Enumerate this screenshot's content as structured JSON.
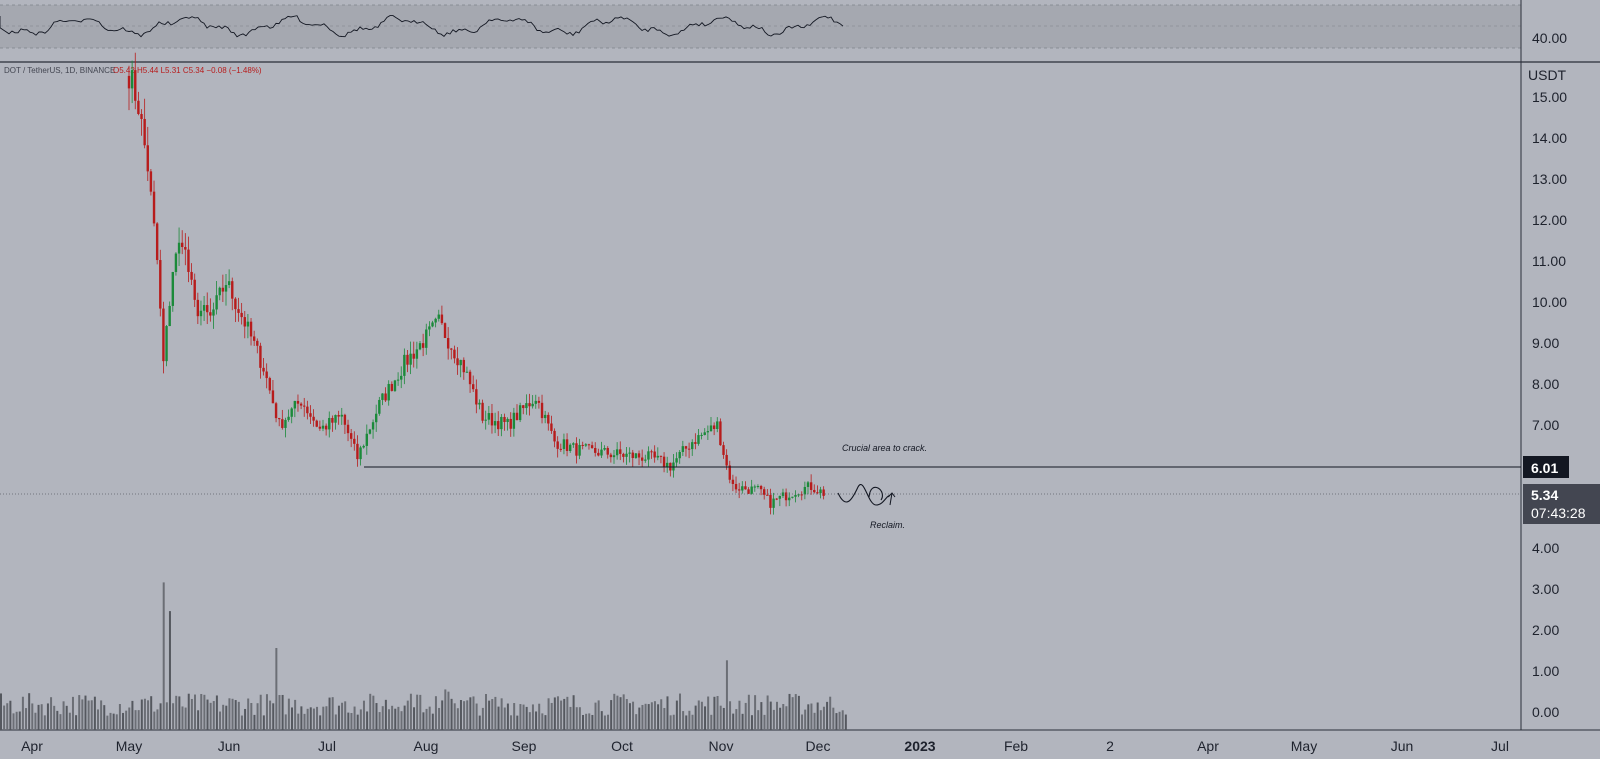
{
  "symbol_info": {
    "symbol": "DOT / TetherUS, 1D, BINANCE",
    "ohlc": "O5.42 H5.44 L5.31 C5.34 −0.08 (−1.48%)"
  },
  "price_axis": {
    "unit": "USDT",
    "ticks": [
      "15.00",
      "14.00",
      "13.00",
      "12.00",
      "11.00",
      "10.00",
      "9.00",
      "8.00",
      "7.00",
      "4.00",
      "3.00",
      "2.00",
      "1.00",
      "0.00"
    ]
  },
  "rsi_panel": {
    "tick_label": "40.00"
  },
  "time_axis": {
    "labels": [
      "Apr",
      "May",
      "Jun",
      "Jul",
      "Aug",
      "Sep",
      "Oct",
      "Nov",
      "Dec",
      "2023",
      "Feb",
      "2",
      "Apr",
      "May",
      "Jun",
      "Jul"
    ]
  },
  "badges": {
    "level_price": "6.01",
    "last_price": "5.34",
    "countdown": "07:43:28"
  },
  "annotations": {
    "crucial": "Crucial area to crack.",
    "reclaim": "Reclaim."
  },
  "colors": {
    "background": "#b2b5be",
    "up_candle": "#1b8a3a",
    "down_candle": "#b71c1c",
    "volume": "#6b6e75",
    "rsi_band": "#a5a8b0",
    "badge_dark": "#131722",
    "badge_price": "#434651"
  },
  "chart_data": {
    "type": "candlestick",
    "symbol": "DOT / TetherUS",
    "interval": "1D",
    "exchange": "BINANCE",
    "y_unit": "USDT",
    "ylim": [
      -0.4,
      15.6
    ],
    "x_range": [
      "Mar 2022",
      "Jul 2023"
    ],
    "close_path": [
      {
        "date": "2022-05-01",
        "close": 15.6
      },
      {
        "date": "2022-05-04",
        "close": 14.8
      },
      {
        "date": "2022-05-07",
        "close": 13.3
      },
      {
        "date": "2022-05-10",
        "close": 11.0
      },
      {
        "date": "2022-05-12",
        "close": 8.5
      },
      {
        "date": "2022-05-15",
        "close": 10.8
      },
      {
        "date": "2022-05-18",
        "close": 11.6
      },
      {
        "date": "2022-05-22",
        "close": 9.9
      },
      {
        "date": "2022-05-27",
        "close": 9.6
      },
      {
        "date": "2022-06-01",
        "close": 10.5
      },
      {
        "date": "2022-06-07",
        "close": 9.5
      },
      {
        "date": "2022-06-13",
        "close": 8.4
      },
      {
        "date": "2022-06-18",
        "close": 7.0
      },
      {
        "date": "2022-06-25",
        "close": 7.6
      },
      {
        "date": "2022-07-01",
        "close": 6.9
      },
      {
        "date": "2022-07-08",
        "close": 7.2
      },
      {
        "date": "2022-07-13",
        "close": 6.2
      },
      {
        "date": "2022-07-20",
        "close": 7.5
      },
      {
        "date": "2022-07-28",
        "close": 8.5
      },
      {
        "date": "2022-08-08",
        "close": 9.5
      },
      {
        "date": "2022-08-16",
        "close": 8.4
      },
      {
        "date": "2022-08-22",
        "close": 7.2
      },
      {
        "date": "2022-08-30",
        "close": 7.0
      },
      {
        "date": "2022-09-08",
        "close": 7.7
      },
      {
        "date": "2022-09-14",
        "close": 6.6
      },
      {
        "date": "2022-09-21",
        "close": 6.4
      },
      {
        "date": "2022-10-02",
        "close": 6.3
      },
      {
        "date": "2022-10-15",
        "close": 6.2
      },
      {
        "date": "2022-10-21",
        "close": 6.0
      },
      {
        "date": "2022-10-28",
        "close": 6.6
      },
      {
        "date": "2022-11-05",
        "close": 7.0
      },
      {
        "date": "2022-11-08",
        "close": 6.0
      },
      {
        "date": "2022-11-10",
        "close": 5.5
      },
      {
        "date": "2022-11-18",
        "close": 5.4
      },
      {
        "date": "2022-11-22",
        "close": 5.1
      },
      {
        "date": "2022-11-30",
        "close": 5.4
      },
      {
        "date": "2022-12-05",
        "close": 5.5
      },
      {
        "date": "2022-12-09",
        "close": 5.34
      }
    ],
    "horizontal_level": {
      "price": 6.01,
      "from": "2022-07-13"
    },
    "last_price": 5.34,
    "volume_ylim": [
      0,
      4
    ],
    "volume_peaks": [
      {
        "date": "2022-05-12",
        "value": 3.6
      },
      {
        "date": "2022-05-14",
        "value": 2.9
      },
      {
        "date": "2022-06-17",
        "value": 2.0
      },
      {
        "date": "2022-11-08",
        "value": 1.7
      }
    ],
    "rsi_label": "40.00",
    "annotations": [
      "Crucial area to crack.",
      "Reclaim."
    ]
  }
}
